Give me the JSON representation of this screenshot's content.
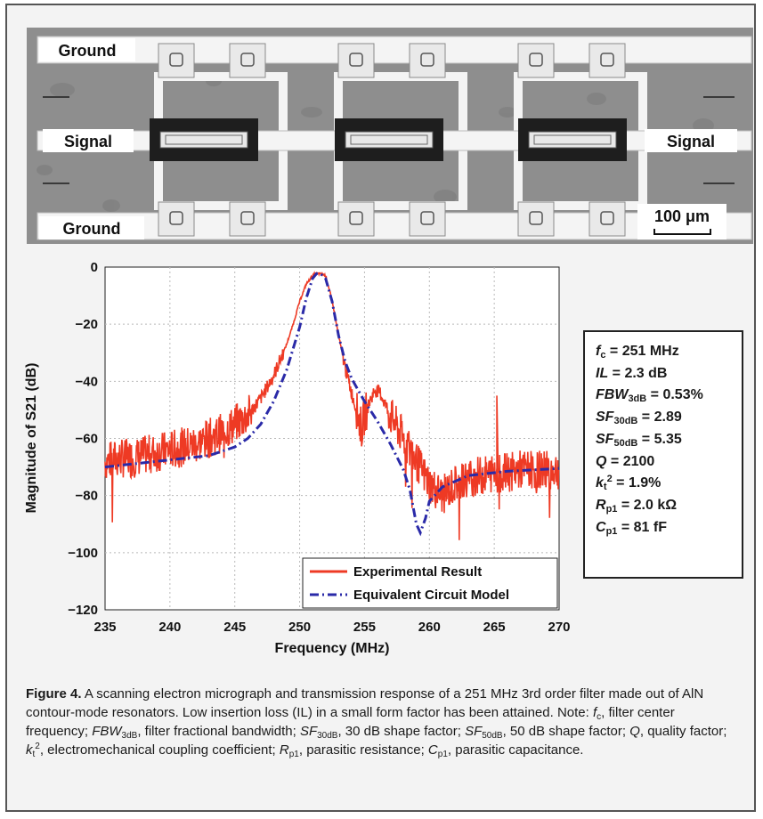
{
  "micrograph": {
    "labels": {
      "ground_top": "Ground",
      "signal_left": "Signal",
      "signal_right": "Signal",
      "ground_bottom": "Ground",
      "scale_bar": "100 μm"
    },
    "colors": {
      "substrate": "#8e8e8e",
      "metal": "#f4f4f4",
      "resonator_body": "#1e1e1e"
    }
  },
  "chart_data": {
    "type": "line",
    "xlabel": "Frequency (MHz)",
    "ylabel": "Magnitude of S21 (dB)",
    "xlim": [
      235,
      270
    ],
    "ylim": [
      -120,
      0
    ],
    "xticks": [
      235,
      240,
      245,
      250,
      255,
      260,
      265,
      270
    ],
    "yticks": [
      0,
      -20,
      -40,
      -60,
      -80,
      -100,
      -120
    ],
    "grid": true,
    "legend_position": "bottom-right",
    "series": [
      {
        "name": "Experimental Result",
        "color": "#ee3a24",
        "style": "solid",
        "x": [
          235,
          236,
          237,
          238,
          239,
          240,
          241,
          242,
          243,
          244,
          245,
          246,
          247,
          248,
          249,
          249.5,
          250,
          250.5,
          251,
          251.2,
          251.5,
          251.8,
          252,
          252.3,
          252.6,
          253,
          253.5,
          254,
          254.5,
          254.8,
          255,
          255.5,
          255.8,
          256.2,
          256.6,
          257,
          258,
          259,
          260,
          261,
          262,
          263,
          264,
          265,
          266,
          267,
          268,
          269,
          270
        ],
        "y": [
          -68,
          -67,
          -67,
          -66,
          -65,
          -64,
          -63,
          -62,
          -60,
          -58,
          -55,
          -52,
          -46,
          -38,
          -27,
          -20,
          -12,
          -6,
          -3,
          -2.3,
          -2.3,
          -2.5,
          -3,
          -8,
          -14,
          -24,
          -35,
          -44,
          -52,
          -57,
          -52,
          -46,
          -43,
          -44,
          -48,
          -52,
          -60,
          -68,
          -76,
          -80,
          -76,
          -74,
          -73,
          -72,
          -72,
          -71,
          -71,
          -71,
          -71
        ]
      },
      {
        "name": "Equivalent Circuit Model",
        "color": "#2a2aa8",
        "style": "dash-dot",
        "x": [
          235,
          237,
          239,
          241,
          243,
          245,
          246,
          247,
          248,
          249,
          250,
          250.5,
          251,
          251.3,
          251.6,
          252,
          252.5,
          253,
          253.5,
          254,
          254.5,
          255,
          256,
          257,
          258,
          258.5,
          259,
          259.3,
          259.7,
          260,
          261,
          262,
          263,
          264,
          265,
          266,
          268,
          270
        ],
        "y": [
          -70,
          -69,
          -68,
          -67,
          -66,
          -63,
          -60,
          -55,
          -47,
          -36,
          -21,
          -11,
          -4,
          -2.3,
          -2.3,
          -4,
          -12,
          -24,
          -33,
          -39,
          -43,
          -47,
          -54,
          -62,
          -71,
          -78,
          -90,
          -93,
          -88,
          -82,
          -77,
          -75,
          -73,
          -72.5,
          -72,
          -71.5,
          -71,
          -70.5
        ]
      }
    ]
  },
  "param_box": {
    "fc": {
      "sym": "f",
      "sub": "c",
      "val": " = 251 MHz"
    },
    "il": {
      "sym": "IL",
      "val": " = 2.3 dB"
    },
    "fbw": {
      "sym": "FBW",
      "sub": "3dB",
      "val": " = 0.53%"
    },
    "sf30": {
      "sym": "SF",
      "sub": "30dB",
      "val": " = 2.89"
    },
    "sf50": {
      "sym": "SF",
      "sub": "50dB",
      "val": " = 5.35"
    },
    "q": {
      "sym": "Q",
      "val": " = 2100"
    },
    "kt": {
      "sym": "k",
      "sub": "t",
      "sup": "2",
      "val": " = 1.9%"
    },
    "rp": {
      "sym": "R",
      "sub": "p1",
      "val": " = 2.0 kΩ"
    },
    "cp": {
      "sym": "C",
      "sub": "p1",
      "val": " = 81 fF"
    }
  },
  "caption": {
    "label": "Figure 4.",
    "p1": " A scanning electron micrograph and transmission response of a 251 MHz 3rd order filter made out of AlN contour-mode resonators. Low insertion loss (IL) in a small form factor has been attained. Note: ",
    "fc_sym": "f",
    "fc_sub": "c",
    "p2": ", filter center frequency; ",
    "fbw_sym": "FBW",
    "fbw_sub": "3dB",
    "p3": ", filter fractional bandwidth; ",
    "sf30_sym": "SF",
    "sf30_sub": "30dB",
    "p4": ", 30 dB shape factor; ",
    "sf50_sym": "SF",
    "sf50_sub": "50dB",
    "p5": ", 50 dB shape factor; ",
    "q_sym": "Q",
    "p6": ", quality factor; ",
    "kt_sym": "k",
    "kt_sub": "t",
    "kt_sup": "2",
    "p7": ", electromechanical coupling coefficient; ",
    "rp_sym": "R",
    "rp_sub": "p1",
    "p8": ", parasitic resistance; ",
    "cp_sym": "C",
    "cp_sub": "p1",
    "p9": ", parasitic capacitance."
  }
}
